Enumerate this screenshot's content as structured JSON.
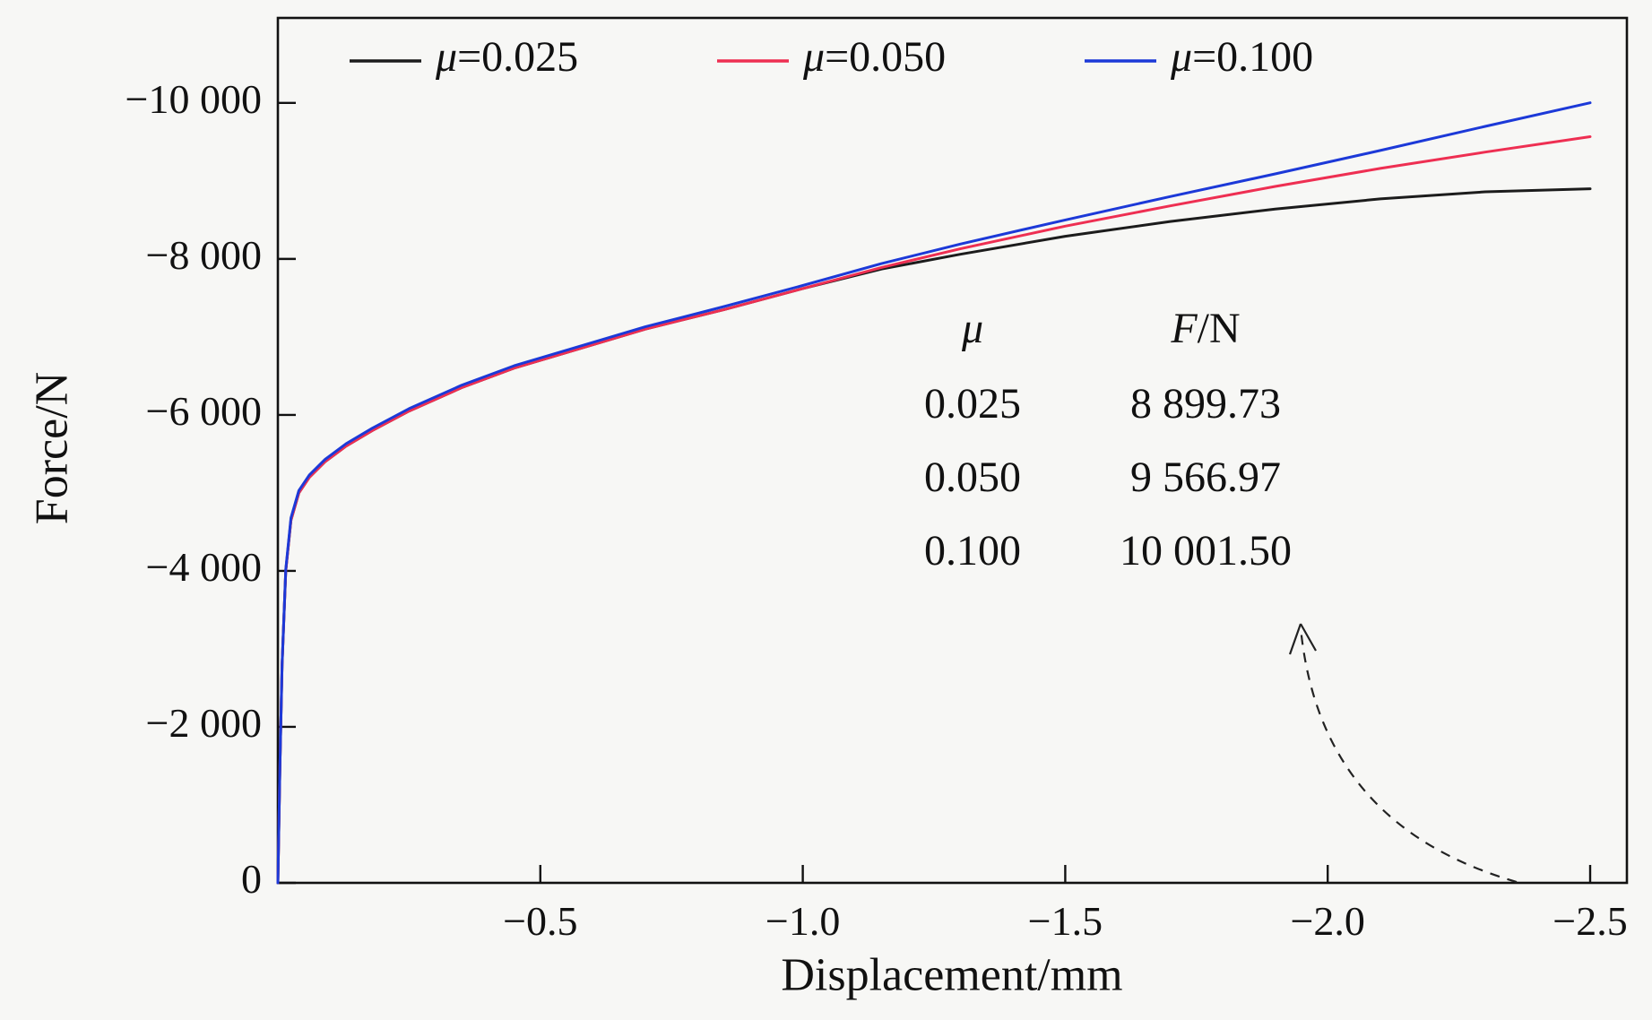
{
  "colors": {
    "background": "#f7f7f5",
    "axis": "#111111",
    "arrow": "#222222"
  },
  "chart_data": {
    "type": "line",
    "title": "",
    "xlabel": "Displacement/mm",
    "ylabel": "Force/N",
    "xlim": [
      0,
      -2.57
    ],
    "ylim": [
      0,
      -11090
    ],
    "grid": false,
    "legend_position": "top-inside",
    "x_ticks": [
      {
        "value": -0.5,
        "label": "−0.5"
      },
      {
        "value": -1.0,
        "label": "−1.0"
      },
      {
        "value": -1.5,
        "label": "−1.5"
      },
      {
        "value": -2.0,
        "label": "−2.0"
      },
      {
        "value": -2.5,
        "label": "−2.5"
      }
    ],
    "y_ticks": [
      {
        "value": 0,
        "label": "0"
      },
      {
        "value": -2000,
        "label": "−2 000"
      },
      {
        "value": -4000,
        "label": "−4 000"
      },
      {
        "value": -6000,
        "label": "−6 000"
      },
      {
        "value": -8000,
        "label": "−8 000"
      },
      {
        "value": -10000,
        "label": "−10 000"
      }
    ],
    "x": [
      0,
      -0.004,
      -0.008,
      -0.015,
      -0.025,
      -0.04,
      -0.06,
      -0.09,
      -0.13,
      -0.18,
      -0.25,
      -0.35,
      -0.45,
      -0.55,
      -0.7,
      -0.85,
      -1.0,
      -1.15,
      -1.3,
      -1.5,
      -1.7,
      -1.9,
      -2.1,
      -2.3,
      -2.5
    ],
    "series": [
      {
        "name": "μ=0.025",
        "color": "#1c1c1c",
        "final_force": "8 899.73",
        "y": [
          0,
          -1500,
          -2800,
          -4000,
          -4650,
          -5000,
          -5200,
          -5400,
          -5600,
          -5800,
          -6050,
          -6350,
          -6600,
          -6800,
          -7100,
          -7350,
          -7620,
          -7870,
          -8060,
          -8290,
          -8480,
          -8640,
          -8770,
          -8860,
          -8900
        ]
      },
      {
        "name": "μ=0.050",
        "color": "#ee2f52",
        "final_force": "9 566.97",
        "y": [
          0,
          -1500,
          -2800,
          -4000,
          -4650,
          -5000,
          -5200,
          -5400,
          -5600,
          -5800,
          -6050,
          -6350,
          -6600,
          -6800,
          -7100,
          -7350,
          -7620,
          -7890,
          -8130,
          -8420,
          -8680,
          -8930,
          -9160,
          -9370,
          -9567
        ]
      },
      {
        "name": "μ=0.100",
        "color": "#1c39d8",
        "final_force": "10 001.50",
        "y": [
          0,
          -1500,
          -2800,
          -4020,
          -4680,
          -5030,
          -5230,
          -5430,
          -5630,
          -5830,
          -6080,
          -6380,
          -6630,
          -6830,
          -7130,
          -7390,
          -7660,
          -7940,
          -8190,
          -8500,
          -8800,
          -9090,
          -9390,
          -9700,
          -10002
        ]
      }
    ],
    "annotation_table": {
      "headers": [
        "μ",
        "F/N"
      ],
      "rows": [
        [
          "0.025",
          "8 899.73"
        ],
        [
          "0.050",
          "9 566.97"
        ],
        [
          "0.100",
          "10 001.50"
        ]
      ]
    },
    "arrow_annotation": {
      "type": "dashed-curved-arrow",
      "description": "dashed curve rising from the x-axis near −2.4 with arrowhead pointing up"
    }
  }
}
